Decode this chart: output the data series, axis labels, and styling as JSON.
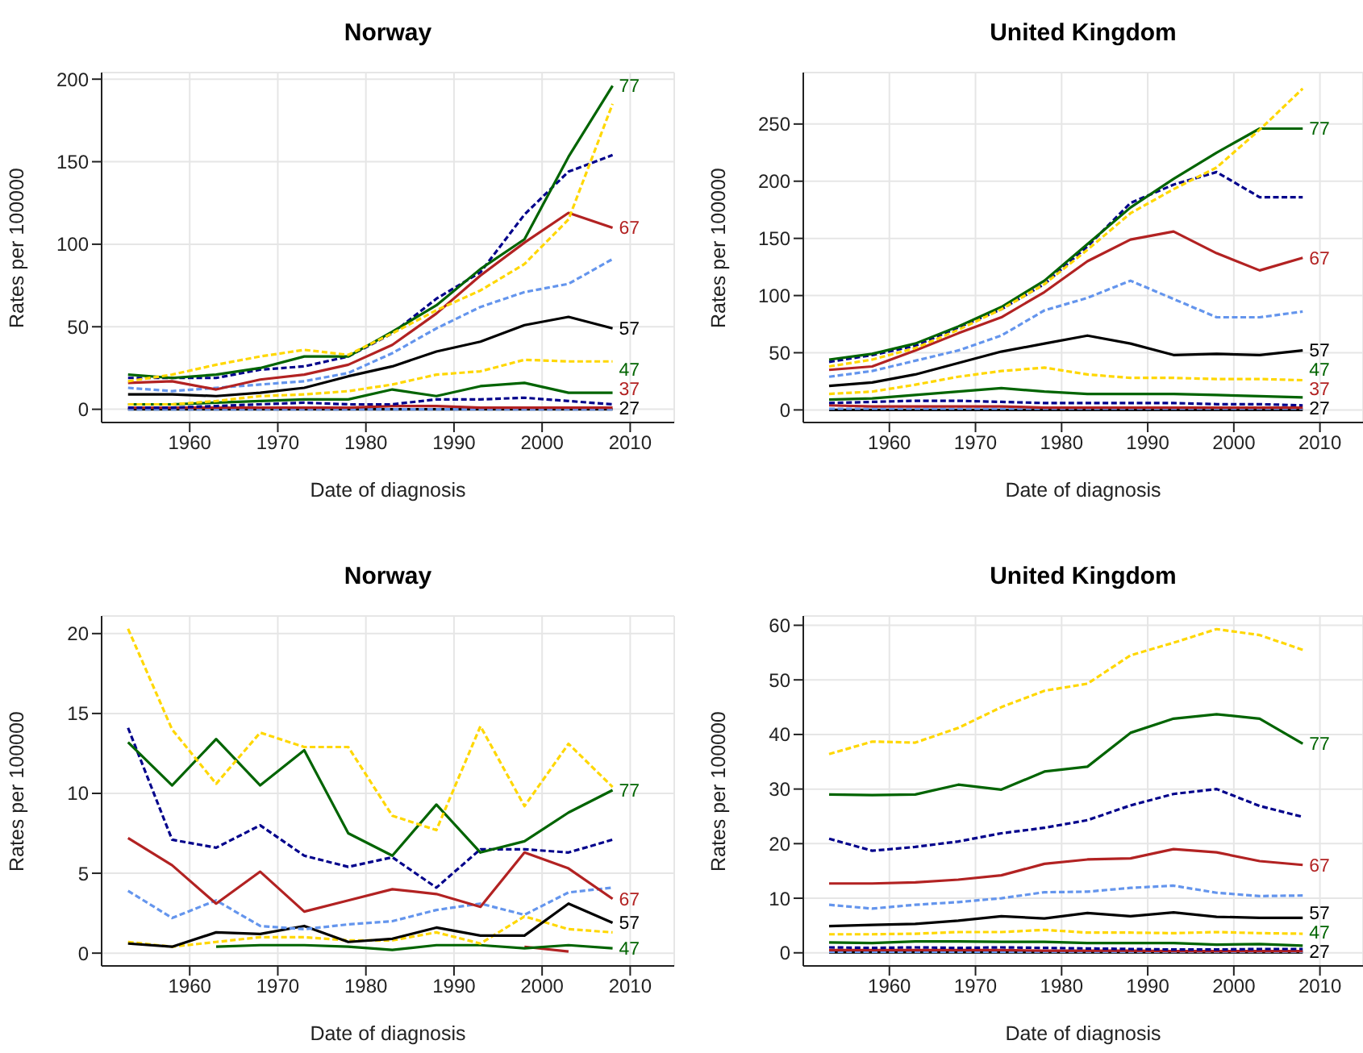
{
  "chart_data": [
    {
      "type": "line",
      "title": "Norway",
      "xlabel": "Date of diagnosis",
      "ylabel": "Rates per 100000",
      "x": [
        1953,
        1958,
        1963,
        1968,
        1973,
        1978,
        1983,
        1988,
        1993,
        1998,
        2003,
        2008
      ],
      "xlim": [
        1950,
        2015
      ],
      "xticks": [
        1960,
        1970,
        1980,
        1990,
        2000,
        2010
      ],
      "ylim": [
        -8,
        204
      ],
      "yticks": [
        0,
        50,
        100,
        150,
        200
      ],
      "grid": true,
      "series": [
        {
          "name": "27",
          "color": "#000000",
          "line_style": "solid",
          "values": [
            0,
            0,
            0,
            0,
            0,
            0,
            0,
            0,
            0,
            0,
            0,
            0
          ]
        },
        {
          "color": "#6495ed",
          "line_style": "dashed",
          "values": [
            0,
            0,
            0,
            0,
            0,
            0,
            0,
            0,
            0,
            0,
            0,
            0
          ]
        },
        {
          "name": "37",
          "color": "#b22222",
          "line_style": "solid",
          "values": [
            1,
            1,
            1,
            1,
            1,
            1,
            2,
            2,
            1,
            1,
            1,
            1
          ]
        },
        {
          "color": "#00008b",
          "line_style": "dashed",
          "values": [
            1,
            1,
            2,
            3,
            4,
            3,
            3,
            6,
            6,
            7,
            5,
            3
          ]
        },
        {
          "name": "47",
          "color": "#006400",
          "line_style": "solid",
          "values": [
            3,
            3,
            4,
            5,
            6,
            6,
            12,
            8,
            14,
            16,
            10,
            10
          ]
        },
        {
          "color": "#ffd700",
          "line_style": "dashed",
          "values": [
            3,
            3,
            5,
            8,
            9,
            11,
            15,
            21,
            23,
            30,
            29,
            29
          ]
        },
        {
          "name": "57",
          "color": "#000000",
          "line_style": "solid",
          "values": [
            9,
            9,
            8,
            10,
            13,
            20,
            26,
            35,
            41,
            51,
            56,
            49
          ]
        },
        {
          "color": "#6495ed",
          "line_style": "dashed",
          "values": [
            13,
            11,
            13,
            15,
            17,
            22,
            34,
            49,
            62,
            71,
            76,
            91
          ]
        },
        {
          "name": "67",
          "color": "#b22222",
          "line_style": "solid",
          "values": [
            16,
            17,
            12,
            18,
            21,
            27,
            39,
            58,
            81,
            101,
            119,
            110
          ]
        },
        {
          "color": "#00008b",
          "line_style": "dashed",
          "values": [
            19,
            19,
            19,
            24,
            26,
            32,
            46,
            67,
            83,
            118,
            144,
            154
          ]
        },
        {
          "name": "77",
          "color": "#006400",
          "line_style": "solid",
          "values": [
            21,
            19,
            21,
            25,
            32,
            32,
            47,
            63,
            85,
            103,
            153,
            196
          ]
        },
        {
          "color": "#ffd700",
          "line_style": "dashed",
          "values": [
            17,
            21,
            27,
            32,
            36,
            33,
            46,
            60,
            72,
            88,
            115,
            185
          ]
        }
      ]
    },
    {
      "type": "line",
      "title": "United Kingdom",
      "xlabel": "Date of diagnosis",
      "ylabel": "Rates per 100000",
      "x": [
        1953,
        1958,
        1963,
        1968,
        1973,
        1978,
        1983,
        1988,
        1993,
        1998,
        2003,
        2008
      ],
      "xlim": [
        1950,
        2015
      ],
      "xticks": [
        1960,
        1970,
        1980,
        1990,
        2000,
        2010
      ],
      "ylim": [
        -11,
        295
      ],
      "yticks": [
        0,
        50,
        100,
        150,
        200,
        250
      ],
      "grid": true,
      "series": [
        {
          "name": "27",
          "color": "#000000",
          "line_style": "solid",
          "values": [
            0,
            0,
            0,
            0,
            0,
            0,
            0,
            0,
            0,
            0,
            0,
            0
          ]
        },
        {
          "color": "#6495ed",
          "line_style": "dashed",
          "values": [
            1,
            1,
            1,
            1,
            1,
            1,
            1,
            1,
            1,
            1,
            1,
            1
          ]
        },
        {
          "name": "37",
          "color": "#b22222",
          "line_style": "solid",
          "values": [
            4,
            3,
            3,
            3,
            3,
            2,
            2,
            2,
            2,
            2,
            2,
            2
          ]
        },
        {
          "color": "#00008b",
          "line_style": "dashed",
          "values": [
            6,
            7,
            8,
            8,
            7,
            6,
            6,
            6,
            6,
            5,
            5,
            4
          ]
        },
        {
          "name": "47",
          "color": "#006400",
          "line_style": "solid",
          "values": [
            9,
            10,
            13,
            16,
            19,
            16,
            14,
            14,
            14,
            13,
            12,
            11
          ]
        },
        {
          "color": "#ffd700",
          "line_style": "dashed",
          "values": [
            14,
            16,
            22,
            29,
            34,
            37,
            31,
            28,
            28,
            27,
            27,
            26
          ]
        },
        {
          "name": "57",
          "color": "#000000",
          "line_style": "solid",
          "values": [
            21,
            24,
            31,
            41,
            51,
            58,
            65,
            58,
            48,
            49,
            48,
            52
          ]
        },
        {
          "color": "#6495ed",
          "line_style": "dashed",
          "values": [
            29,
            34,
            43,
            52,
            65,
            87,
            98,
            113,
            97,
            81,
            81,
            86
          ]
        },
        {
          "name": "67",
          "color": "#b22222",
          "line_style": "solid",
          "values": [
            35,
            38,
            52,
            67,
            81,
            103,
            130,
            149,
            156,
            137,
            122,
            133
          ]
        },
        {
          "color": "#00008b",
          "line_style": "dashed",
          "values": [
            42,
            48,
            56,
            72,
            88,
            110,
            143,
            181,
            197,
            208,
            186,
            186
          ]
        },
        {
          "name": "77",
          "color": "#006400",
          "line_style": "solid",
          "values": [
            44,
            49,
            58,
            73,
            90,
            113,
            145,
            177,
            202,
            225,
            246,
            246
          ]
        },
        {
          "color": "#ffd700",
          "line_style": "dashed",
          "values": [
            38,
            44,
            54,
            70,
            88,
            110,
            140,
            172,
            193,
            212,
            245,
            281
          ]
        }
      ]
    },
    {
      "type": "line",
      "title": "Norway",
      "xlabel": "Date of diagnosis",
      "ylabel": "Rates per 100000",
      "x": [
        1953,
        1958,
        1963,
        1968,
        1973,
        1978,
        1983,
        1988,
        1993,
        1998,
        2003,
        2008
      ],
      "xlim": [
        1950,
        2015
      ],
      "xticks": [
        1960,
        1970,
        1980,
        1990,
        2000,
        2010
      ],
      "ylim": [
        -0.8,
        21.1
      ],
      "yticks": [
        0,
        5,
        10,
        15,
        20
      ],
      "grid": true,
      "series": [
        {
          "color": "#b22222",
          "line_style": "solid",
          "values": [
            null,
            null,
            null,
            null,
            null,
            null,
            null,
            null,
            null,
            0.4,
            0.1,
            null
          ]
        },
        {
          "name": "47",
          "color": "#006400",
          "line_style": "solid",
          "values": [
            null,
            null,
            0.4,
            0.5,
            0.5,
            0.4,
            0.2,
            0.5,
            0.5,
            0.3,
            0.5,
            0.3
          ]
        },
        {
          "color": "#ffd700",
          "line_style": "dashed",
          "values": [
            0.7,
            0.4,
            0.7,
            1.0,
            1.0,
            0.8,
            0.8,
            1.3,
            0.6,
            2.3,
            1.5,
            1.3
          ]
        },
        {
          "name": "57",
          "color": "#000000",
          "line_style": "solid",
          "values": [
            0.6,
            0.4,
            1.3,
            1.2,
            1.7,
            0.7,
            0.9,
            1.6,
            1.1,
            1.1,
            3.1,
            1.9
          ]
        },
        {
          "color": "#6495ed",
          "line_style": "dashed",
          "values": [
            3.9,
            2.2,
            3.3,
            1.7,
            1.5,
            1.8,
            2.0,
            2.7,
            3.1,
            2.4,
            3.8,
            4.1
          ]
        },
        {
          "name": "67",
          "color": "#b22222",
          "line_style": "solid",
          "values": [
            7.2,
            5.5,
            3.1,
            5.1,
            2.6,
            3.3,
            4.0,
            3.7,
            2.9,
            6.3,
            5.3,
            3.4
          ]
        },
        {
          "color": "#00008b",
          "line_style": "dashed",
          "values": [
            14.1,
            7.1,
            6.6,
            8.0,
            6.1,
            5.4,
            6.0,
            4.1,
            6.5,
            6.5,
            6.3,
            7.1
          ]
        },
        {
          "name": "77",
          "color": "#006400",
          "line_style": "solid",
          "values": [
            13.2,
            10.5,
            13.4,
            10.5,
            12.7,
            7.5,
            6.1,
            9.3,
            6.3,
            7.0,
            8.8,
            10.2
          ]
        },
        {
          "color": "#ffd700",
          "line_style": "dashed",
          "values": [
            20.3,
            14,
            10.6,
            13.8,
            12.9,
            12.9,
            8.6,
            7.7,
            14.2,
            9.2,
            13.1,
            10.4
          ]
        }
      ]
    },
    {
      "type": "line",
      "title": "United Kingdom",
      "xlabel": "Date of diagnosis",
      "ylabel": "Rates per 100000",
      "x": [
        1953,
        1958,
        1963,
        1968,
        1973,
        1978,
        1983,
        1988,
        1993,
        1998,
        2003,
        2008
      ],
      "xlim": [
        1950,
        2015
      ],
      "xticks": [
        1960,
        1970,
        1980,
        1990,
        2000,
        2010
      ],
      "ylim": [
        -2.4,
        61.7
      ],
      "yticks": [
        0,
        10,
        20,
        30,
        40,
        50,
        60
      ],
      "grid": true,
      "series": [
        {
          "name": "27",
          "color": "#000000",
          "line_style": "solid",
          "values": [
            0.1,
            0.1,
            0.1,
            0.1,
            0.1,
            0.1,
            0.1,
            0.1,
            0.1,
            0.1,
            0.1,
            0.1
          ]
        },
        {
          "color": "#6495ed",
          "line_style": "dashed",
          "values": [
            0.2,
            0.2,
            0.2,
            0.2,
            0.2,
            0.2,
            0.2,
            0.2,
            0.2,
            0.2,
            0.2,
            0.2
          ]
        },
        {
          "color": "#b22222",
          "line_style": "solid",
          "values": [
            0.5,
            0.5,
            0.5,
            0.5,
            0.5,
            0.4,
            0.4,
            0.4,
            0.3,
            0.3,
            0.3,
            0.3
          ]
        },
        {
          "color": "#00008b",
          "line_style": "dashed",
          "values": [
            1.0,
            0.9,
            1.0,
            0.9,
            1.0,
            0.9,
            0.8,
            0.7,
            0.6,
            0.6,
            0.7,
            0.7
          ]
        },
        {
          "name": "47",
          "color": "#006400",
          "line_style": "solid",
          "values": [
            1.9,
            1.8,
            2.1,
            2.1,
            2.0,
            2.0,
            1.8,
            1.8,
            1.8,
            1.5,
            1.6,
            1.3
          ]
        },
        {
          "color": "#ffd700",
          "line_style": "dashed",
          "values": [
            3.4,
            3.4,
            3.5,
            3.8,
            3.8,
            4.2,
            3.7,
            3.7,
            3.6,
            3.8,
            3.6,
            3.5
          ]
        },
        {
          "name": "57",
          "color": "#000000",
          "line_style": "solid",
          "values": [
            4.9,
            5.1,
            5.3,
            5.9,
            6.7,
            6.3,
            7.3,
            6.7,
            7.4,
            6.6,
            6.4,
            6.4
          ]
        },
        {
          "color": "#6495ed",
          "line_style": "dashed",
          "values": [
            8.8,
            8.1,
            8.8,
            9.3,
            10,
            11.1,
            11.2,
            11.9,
            12.3,
            11,
            10.4,
            10.5
          ]
        },
        {
          "name": "67",
          "color": "#b22222",
          "line_style": "solid",
          "values": [
            12.7,
            12.7,
            12.9,
            13.4,
            14.2,
            16.3,
            17.1,
            17.3,
            19,
            18.4,
            16.8,
            16.1
          ]
        },
        {
          "color": "#00008b",
          "line_style": "dashed",
          "values": [
            20.9,
            18.7,
            19.4,
            20.4,
            21.9,
            22.9,
            24.3,
            27,
            29.1,
            30,
            26.9,
            24.9
          ]
        },
        {
          "name": "77",
          "color": "#006400",
          "line_style": "solid",
          "values": [
            29,
            28.9,
            29,
            30.8,
            29.9,
            33.2,
            34.1,
            40.3,
            42.9,
            43.7,
            42.9,
            38.3
          ]
        },
        {
          "color": "#ffd700",
          "line_style": "dashed",
          "values": [
            36.4,
            38.7,
            38.5,
            41.2,
            45,
            48,
            49.3,
            54.5,
            56.8,
            59.3,
            58.2,
            55.5
          ]
        }
      ]
    }
  ]
}
